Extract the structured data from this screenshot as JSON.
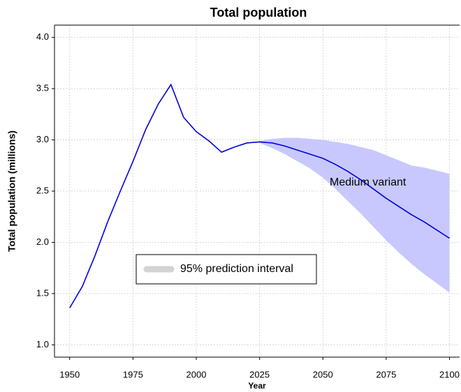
{
  "chart_data": {
    "type": "line",
    "title": "Total population",
    "xlabel": "Year",
    "ylabel": "Total population (millions)",
    "x": [
      1950,
      1955,
      1960,
      1965,
      1970,
      1975,
      1980,
      1985,
      1990,
      1995,
      2000,
      2005,
      2010,
      2015,
      2020,
      2025,
      2030,
      2035,
      2040,
      2045,
      2050,
      2055,
      2060,
      2065,
      2070,
      2075,
      2080,
      2085,
      2090,
      2095,
      2100
    ],
    "series": [
      {
        "name": "Medium variant",
        "color": "#0000e0",
        "values": [
          1.36,
          1.57,
          1.87,
          2.2,
          2.5,
          2.79,
          3.1,
          3.35,
          3.54,
          3.22,
          3.08,
          2.99,
          2.88,
          2.93,
          2.97,
          2.98,
          2.97,
          2.94,
          2.9,
          2.86,
          2.82,
          2.76,
          2.69,
          2.61,
          2.52,
          2.43,
          2.35,
          2.27,
          2.2,
          2.12,
          2.04
        ]
      }
    ],
    "band": {
      "name": "95% prediction interval",
      "color": "#c8c8ff",
      "legend_color": "#d3d3d3",
      "x": [
        2025,
        2030,
        2035,
        2040,
        2045,
        2050,
        2055,
        2060,
        2065,
        2070,
        2075,
        2080,
        2085,
        2090,
        2095,
        2100
      ],
      "upper": [
        2.99,
        3.01,
        3.02,
        3.02,
        3.01,
        3.0,
        2.98,
        2.96,
        2.93,
        2.9,
        2.85,
        2.8,
        2.75,
        2.73,
        2.7,
        2.67
      ],
      "lower": [
        2.97,
        2.92,
        2.86,
        2.79,
        2.72,
        2.63,
        2.52,
        2.4,
        2.28,
        2.15,
        2.02,
        1.9,
        1.79,
        1.69,
        1.6,
        1.51
      ]
    },
    "xlim": [
      1944,
      2104
    ],
    "ylim": [
      0.88,
      4.12
    ],
    "xticks": [
      1950,
      1975,
      2000,
      2025,
      2050,
      2075,
      2100
    ],
    "yticks": [
      {
        "value": 1,
        "label": "1.0"
      },
      1.5,
      {
        "value": 2,
        "label": "2.0"
      },
      2.5,
      {
        "value": 3,
        "label": "3.0"
      },
      3.5,
      {
        "value": 4,
        "label": "4.0"
      }
    ],
    "grid": true,
    "legend": "lower left"
  }
}
